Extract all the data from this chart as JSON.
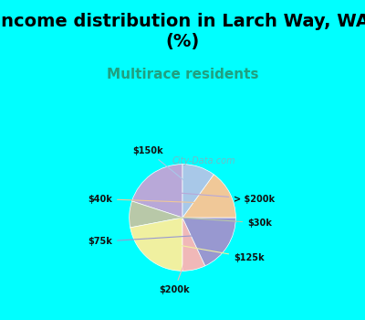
{
  "title": "Income distribution in Larch Way, WA\n(%)",
  "subtitle": "Multirace residents",
  "background_top": "#00FFFF",
  "chart_bg_top": "#e8f5e9",
  "chart_bg_bottom": "#d4edd4",
  "slices": [
    {
      "label": "> $200k",
      "value": 20,
      "color": "#b8a8d8"
    },
    {
      "label": "$30k",
      "value": 8,
      "color": "#b8c8a8"
    },
    {
      "label": "$125k",
      "value": 22,
      "color": "#f0f0a0"
    },
    {
      "label": "$200k",
      "value": 7,
      "color": "#f0b8b8"
    },
    {
      "label": "$75k",
      "value": 18,
      "color": "#9898d0"
    },
    {
      "label": "$40k",
      "value": 15,
      "color": "#f0c898"
    },
    {
      "label": "$150k",
      "value": 10,
      "color": "#a8c8e8"
    }
  ],
  "start_angle": 90,
  "watermark": "City-Data.com",
  "title_fontsize": 14,
  "subtitle_fontsize": 11,
  "subtitle_color": "#20a080",
  "title_color": "#000000"
}
